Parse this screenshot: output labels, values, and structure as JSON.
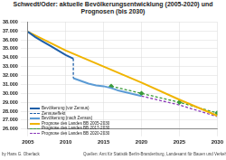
{
  "chart_data": {
    "type": "line",
    "title": "Schwedt/Oder: aktuelle Bevölkerungsentwicklung (2005-2020) und Prognosen (bis 2030)",
    "series": [
      {
        "name": "Bevölkerung (vor Zensus)",
        "color": "#1f5fa8",
        "line_style": "solid",
        "marker": "none",
        "x": [
          2005,
          2006,
          2007,
          2008,
          2009,
          2010,
          2011
        ],
        "values": [
          36900,
          36300,
          35800,
          35300,
          34800,
          34300,
          33900
        ]
      },
      {
        "name": "Zensuseffekt",
        "color": "#1f5fa8",
        "line_style": "dashed",
        "marker": "none",
        "x": [
          2011,
          2011
        ],
        "values": [
          33900,
          31700
        ]
      },
      {
        "name": "Bevölkerung (nach Zensus)",
        "color": "#5b9bd5",
        "line_style": "solid",
        "marker": "none",
        "x": [
          2011,
          2012,
          2013,
          2014,
          2015,
          2016,
          2017,
          2018,
          2019,
          2020
        ],
        "values": [
          31700,
          31400,
          31100,
          30900,
          30800,
          30600,
          30300,
          30100,
          29900,
          29700
        ]
      },
      {
        "name": "Prognose des Landes BB 2005-2030",
        "color": "#f0b400",
        "line_style": "solid",
        "marker": "none",
        "x": [
          2005,
          2010,
          2015,
          2020,
          2025,
          2030
        ],
        "values": [
          36900,
          34800,
          33000,
          31200,
          29300,
          27500
        ]
      },
      {
        "name": "Prognose des Landes BB 2017-2030",
        "color": "#3a9a3a",
        "line_style": "dashed",
        "marker": "diamond",
        "x": [
          2016,
          2020,
          2025,
          2030
        ],
        "values": [
          30800,
          30000,
          29000,
          27800
        ]
      },
      {
        "name": "Prognose des Landes BB 2020-2030",
        "color": "#8a3ab9",
        "line_style": "dashed",
        "marker": "none",
        "x": [
          2020,
          2025,
          2030
        ],
        "values": [
          29700,
          28700,
          27400
        ]
      }
    ],
    "xlim": [
      2005,
      2030
    ],
    "xticks": [
      2005,
      2010,
      2015,
      2020,
      2025,
      2030
    ],
    "ylim": [
      26000,
      38000
    ],
    "yticks": [
      {
        "value": 26000,
        "label": "26.000"
      },
      {
        "value": 27000,
        "label": "27.000"
      },
      {
        "value": 28000,
        "label": "28.000"
      },
      {
        "value": 29000,
        "label": "29.000"
      },
      {
        "value": 30000,
        "label": "30.000"
      },
      {
        "value": 31000,
        "label": "31.000"
      },
      {
        "value": 32000,
        "label": "32.000"
      },
      {
        "value": 33000,
        "label": "33.000"
      },
      {
        "value": 34000,
        "label": "34.000"
      },
      {
        "value": 35000,
        "label": "35.000"
      },
      {
        "value": 36000,
        "label": "36.000"
      },
      {
        "value": 37000,
        "label": "37.000"
      },
      {
        "value": 38000,
        "label": "38.000"
      }
    ],
    "grid": true,
    "legend": "lower left",
    "annotations": [
      "by Hans G. Oberlack",
      "Quellen: Amt für Statistik Berlin-Brandenburg, Landesamt für Bauen und Verkehr"
    ]
  }
}
